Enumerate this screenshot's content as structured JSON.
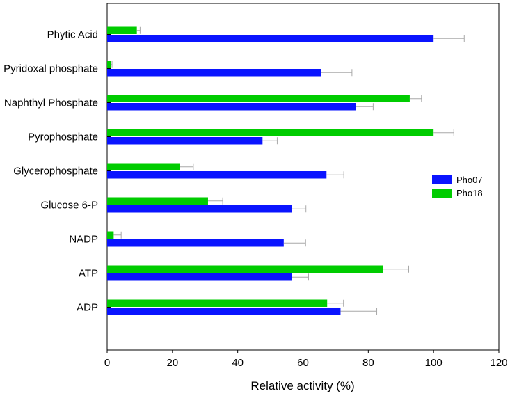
{
  "chart_data": {
    "type": "bar",
    "orientation": "horizontal",
    "categories": [
      "Phytic Acid",
      "Pyridoxal phosphate",
      "Naphthyl Phosphate",
      "Pyrophosphate",
      "Glycerophosphate",
      "Glucose 6-P",
      "NADP",
      "ATP",
      "ADP"
    ],
    "series": [
      {
        "name": "Pho07",
        "color": "#0a14ff",
        "values": [
          100,
          65.5,
          76.2,
          47.6,
          67.2,
          56.5,
          54.1,
          56.5,
          71.5
        ],
        "errors": [
          9.4,
          9.5,
          5.3,
          4.5,
          5.3,
          4.4,
          6.7,
          5.2,
          11.1
        ]
      },
      {
        "name": "Pho18",
        "color": "#00cc00",
        "values": [
          9.1,
          1.2,
          92.7,
          100,
          22.3,
          30.9,
          2.0,
          84.6,
          67.4
        ],
        "errors": [
          1.0,
          0.3,
          3.6,
          6.2,
          4.1,
          4.5,
          2.3,
          7.8,
          5.0
        ]
      }
    ],
    "xlabel": "Relative activity (%)",
    "ylabel": "",
    "xlim": [
      0,
      120
    ],
    "x_ticks": [
      "0",
      "20",
      "40",
      "60",
      "80",
      "100",
      "120"
    ],
    "grid": false,
    "legend_position": "right"
  }
}
